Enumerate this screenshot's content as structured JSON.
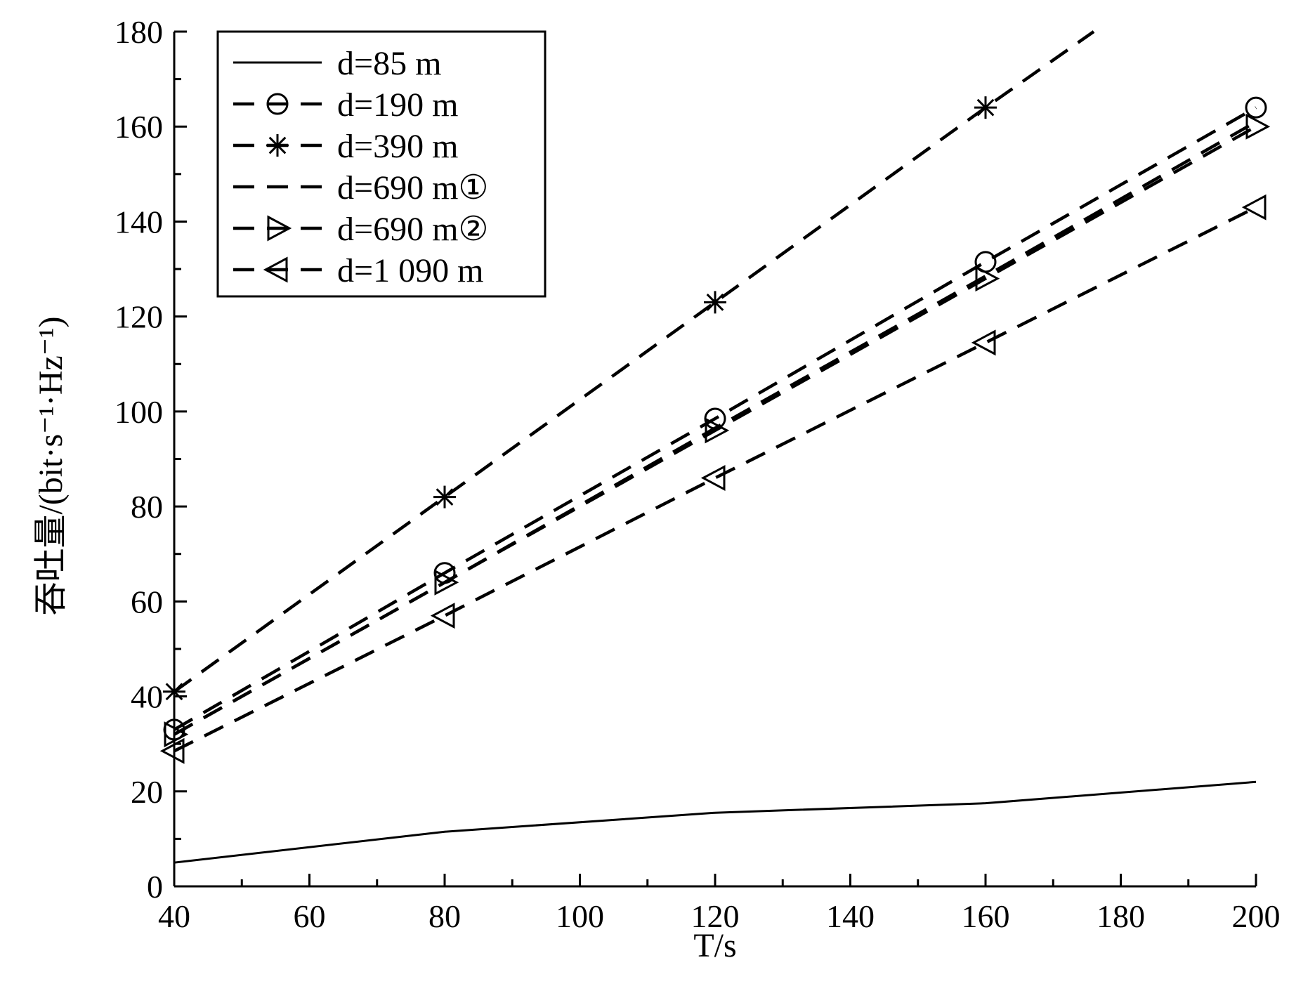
{
  "chart_data": {
    "type": "line",
    "xlabel": "T/s",
    "ylabel": "吞吐量/(bit·s⁻¹·Hz⁻¹)",
    "xlim": [
      40,
      200
    ],
    "ylim": [
      0,
      180
    ],
    "xticks": [
      40,
      60,
      80,
      100,
      120,
      140,
      160,
      180,
      200
    ],
    "yticks": [
      0,
      20,
      40,
      60,
      80,
      100,
      120,
      140,
      160,
      180
    ],
    "grid": false,
    "legend_position": "top-left",
    "series": [
      {
        "name": "d=85 m",
        "style": "solid",
        "marker": "none",
        "x": [
          40,
          80,
          120,
          160,
          200
        ],
        "y": [
          5,
          11.5,
          15.5,
          17.5,
          22
        ]
      },
      {
        "name": "d=190 m",
        "style": "dashed",
        "marker": "circle",
        "x": [
          40,
          80,
          120,
          160,
          200
        ],
        "y": [
          33,
          66,
          98.5,
          131.5,
          164
        ]
      },
      {
        "name": "d=390 m",
        "style": "dashed",
        "marker": "asterisk",
        "x": [
          40,
          80,
          120,
          160,
          176
        ],
        "y": [
          41,
          82,
          123,
          164,
          180
        ]
      },
      {
        "name": "d=690 m①",
        "style": "dashed",
        "marker": "none",
        "x": [
          40,
          80,
          120,
          160,
          200
        ],
        "y": [
          32,
          64,
          96.5,
          128.5,
          161
        ]
      },
      {
        "name": "d=690 m②",
        "style": "dashed",
        "marker": "triangle-right",
        "x": [
          40,
          80,
          120,
          160,
          200
        ],
        "y": [
          32,
          64,
          96,
          128,
          160
        ]
      },
      {
        "name": "d=1 090 m",
        "style": "dashed",
        "marker": "triangle-left",
        "x": [
          40,
          80,
          120,
          160,
          200
        ],
        "y": [
          28.5,
          57,
          86,
          114.5,
          143
        ]
      }
    ]
  }
}
